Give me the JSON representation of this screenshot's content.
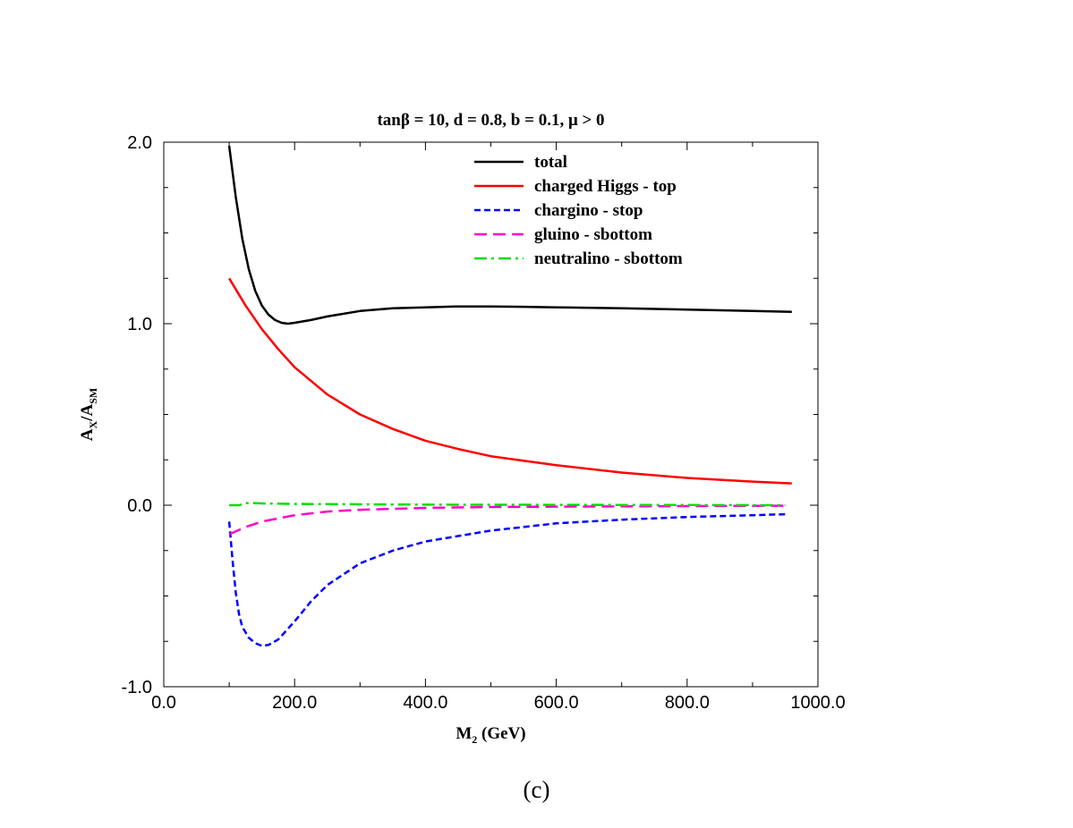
{
  "chart_data": {
    "type": "line",
    "title": "tanβ = 10, d = 0.8, b = 0.1, μ > 0",
    "xlabel_main": "M",
    "xlabel_sub": "2",
    "xlabel_unit": " (GeV)",
    "ylabel_a": "A",
    "ylabel_a_sub": "X",
    "ylabel_b": "/A",
    "ylabel_b_sub": "SM",
    "xlim": [
      0,
      1000
    ],
    "ylim": [
      -1,
      2
    ],
    "x_ticks": [
      0,
      200,
      400,
      600,
      800,
      1000
    ],
    "x_tick_labels": [
      "0.0",
      "200.0",
      "400.0",
      "600.0",
      "800.0",
      "1000.0"
    ],
    "y_ticks": [
      -1,
      0,
      1,
      2
    ],
    "y_tick_labels": [
      "-1.0",
      "0.0",
      "1.0",
      "2.0"
    ],
    "grid": false,
    "legend_position": "top-right",
    "series": [
      {
        "name": "total",
        "color": "#000000",
        "dash": "solid",
        "x": [
          100,
          110,
          120,
          130,
          140,
          150,
          160,
          170,
          180,
          190,
          200,
          225,
          250,
          300,
          350,
          400,
          450,
          500,
          550,
          600,
          700,
          800,
          900,
          960
        ],
        "y": [
          1.98,
          1.7,
          1.47,
          1.3,
          1.18,
          1.1,
          1.05,
          1.02,
          1.005,
          1.0,
          1.005,
          1.02,
          1.04,
          1.07,
          1.085,
          1.09,
          1.095,
          1.095,
          1.093,
          1.09,
          1.085,
          1.078,
          1.07,
          1.065
        ]
      },
      {
        "name": "charged Higgs - top",
        "color": "#ff0000",
        "dash": "solid",
        "x": [
          100,
          125,
          150,
          175,
          200,
          250,
          300,
          350,
          400,
          450,
          500,
          600,
          700,
          800,
          900,
          960
        ],
        "y": [
          1.25,
          1.1,
          0.97,
          0.86,
          0.76,
          0.61,
          0.5,
          0.42,
          0.355,
          0.31,
          0.27,
          0.22,
          0.18,
          0.15,
          0.13,
          0.12
        ]
      },
      {
        "name": "chargino - stop",
        "color": "#0000ff",
        "dash": "dashed",
        "x": [
          100,
          105,
          110,
          115,
          120,
          130,
          140,
          150,
          160,
          175,
          200,
          225,
          250,
          300,
          350,
          400,
          450,
          500,
          600,
          700,
          800,
          900,
          950
        ],
        "y": [
          -0.09,
          -0.3,
          -0.48,
          -0.6,
          -0.67,
          -0.73,
          -0.76,
          -0.775,
          -0.77,
          -0.74,
          -0.64,
          -0.53,
          -0.44,
          -0.32,
          -0.25,
          -0.2,
          -0.17,
          -0.14,
          -0.1,
          -0.08,
          -0.065,
          -0.055,
          -0.05
        ]
      },
      {
        "name": "gluino - sbottom",
        "color": "#ff00cc",
        "dash": "longdash",
        "x": [
          100,
          125,
          150,
          200,
          250,
          300,
          400,
          500,
          600,
          800,
          950
        ],
        "y": [
          -0.16,
          -0.12,
          -0.09,
          -0.055,
          -0.035,
          -0.025,
          -0.015,
          -0.01,
          -0.008,
          -0.005,
          -0.003
        ]
      },
      {
        "name": "neutralino - sbottom",
        "color": "#00dd00",
        "dash": "dashdot",
        "x": [
          100,
          115,
          125,
          135,
          150,
          200,
          300,
          400,
          600,
          800,
          950
        ],
        "y": [
          0.0,
          0.0,
          0.012,
          0.012,
          0.01,
          0.007,
          0.005,
          0.003,
          0.002,
          0.001,
          0.0
        ]
      }
    ]
  },
  "caption": "(c)"
}
